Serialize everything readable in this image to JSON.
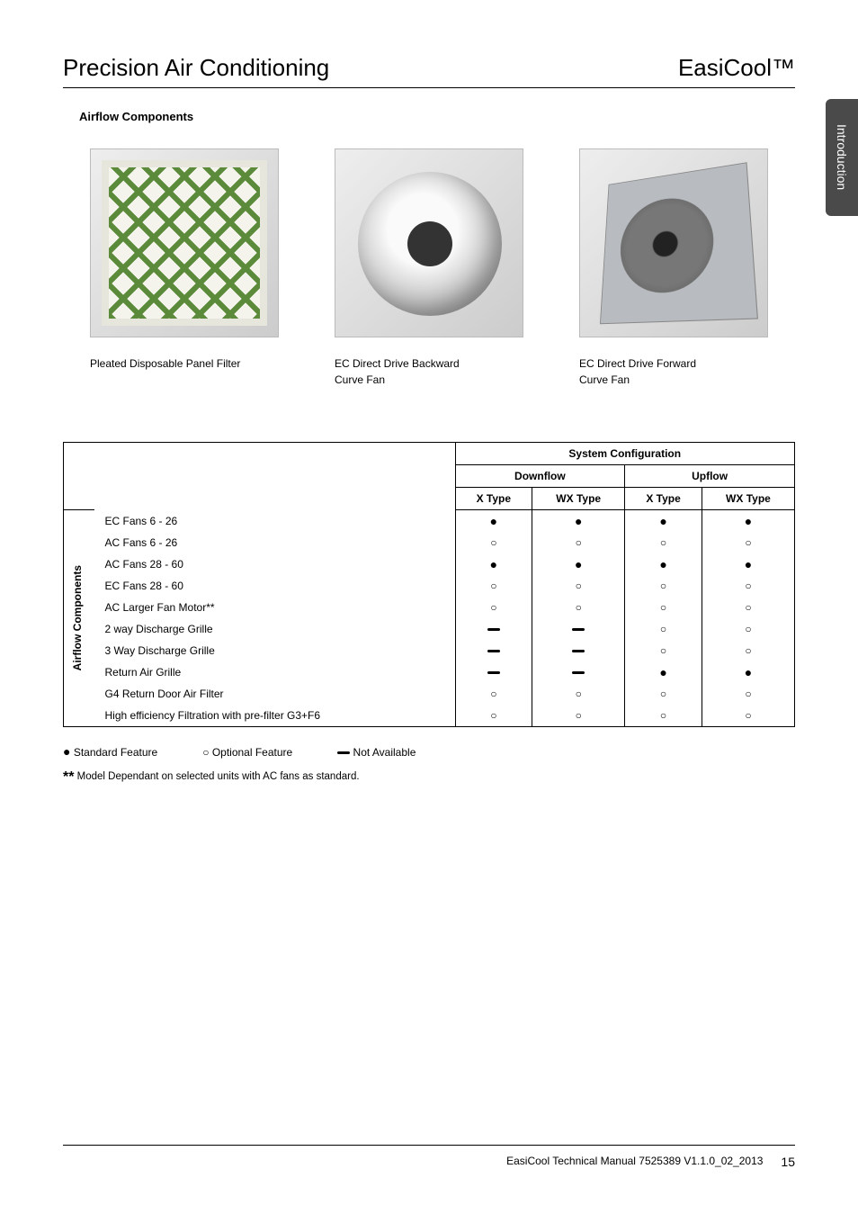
{
  "header": {
    "left": "Precision Air Conditioning",
    "right": "EasiCool™"
  },
  "side_tab": "Introduction",
  "section_title": "Airflow Components",
  "captions": {
    "filter": "Pleated Disposable Panel Filter",
    "backward_line1": "EC Direct Drive Backward",
    "backward_line2": "Curve Fan",
    "forward_line1": "EC Direct Drive Forward",
    "forward_line2": "Curve Fan"
  },
  "table": {
    "header_main": "System Configuration",
    "sub_downflow": "Downflow",
    "sub_upflow": "Upflow",
    "col_x": "X Type",
    "col_wx": "WX Type",
    "group_label": "Airflow Components",
    "symbols": {
      "std": "●",
      "opt": "○",
      "na": "▬"
    },
    "rows": [
      {
        "label": "EC Fans 6 - 26",
        "d_x": "●",
        "d_wx": "●",
        "u_x": "●",
        "u_wx": "●"
      },
      {
        "label": "AC Fans 6 - 26",
        "d_x": "○",
        "d_wx": "○",
        "u_x": "○",
        "u_wx": "○"
      },
      {
        "label": "AC Fans 28 - 60",
        "d_x": "●",
        "d_wx": "●",
        "u_x": "●",
        "u_wx": "●"
      },
      {
        "label": "EC Fans 28 - 60",
        "d_x": "○",
        "d_wx": "○",
        "u_x": "○",
        "u_wx": "○"
      },
      {
        "label": "AC Larger Fan Motor**",
        "d_x": "○",
        "d_wx": "○",
        "u_x": "○",
        "u_wx": "○"
      },
      {
        "label": "2 way Discharge Grille",
        "d_x": "▬",
        "d_wx": "▬",
        "u_x": "○",
        "u_wx": "○"
      },
      {
        "label": "3 Way Discharge Grille",
        "d_x": "▬",
        "d_wx": "▬",
        "u_x": "○",
        "u_wx": "○"
      },
      {
        "label": "Return Air Grille",
        "d_x": "▬",
        "d_wx": "▬",
        "u_x": "●",
        "u_wx": "●"
      },
      {
        "label": "G4 Return Door Air Filter",
        "d_x": "○",
        "d_wx": "○",
        "u_x": "○",
        "u_wx": "○"
      },
      {
        "label": "High efficiency Filtration with pre-filter G3+F6",
        "d_x": "○",
        "d_wx": "○",
        "u_x": "○",
        "u_wx": "○"
      }
    ]
  },
  "legend": {
    "std_sym": "●",
    "std_text": "Standard Feature",
    "opt_sym": "○",
    "opt_text": "Optional Feature",
    "na_text": "Not Available",
    "footnote_marker": "**",
    "footnote_text": " Model Dependant on selected units with AC fans as standard."
  },
  "footer": {
    "doc": "EasiCool Technical Manual 7525389 V1.1.0_02_2013",
    "page": "15"
  }
}
